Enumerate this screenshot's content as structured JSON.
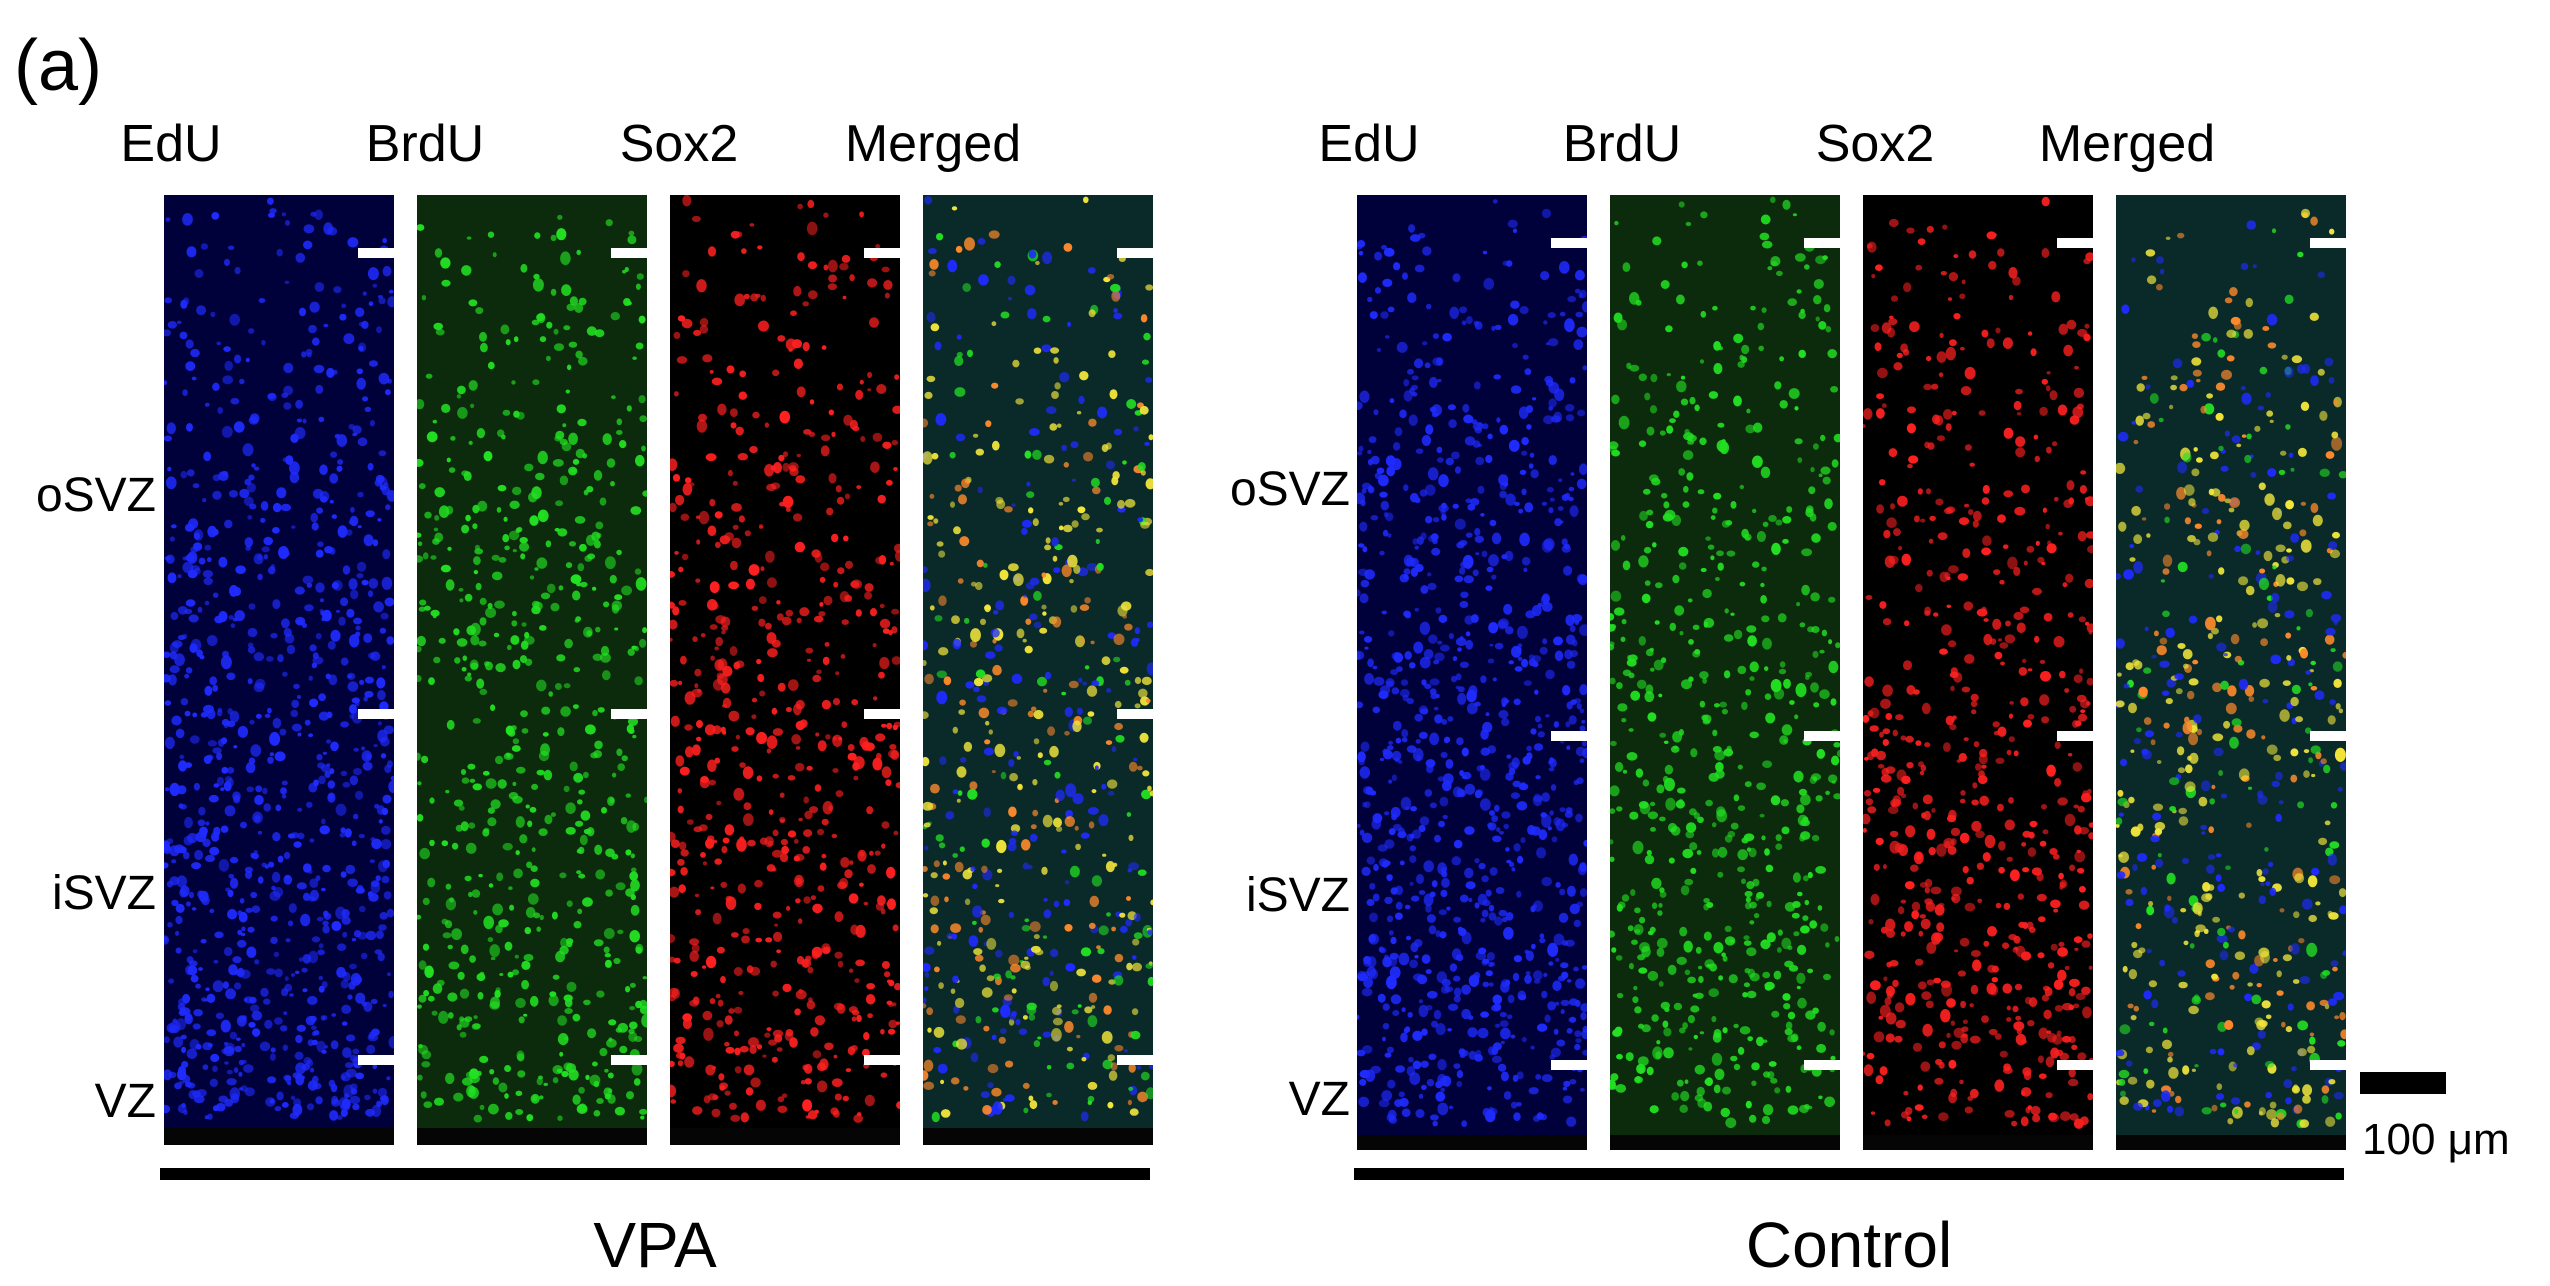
{
  "panel_label": "(a)",
  "groups": [
    {
      "label": "VPA",
      "columns": [
        {
          "label": "EdU",
          "channel": "edu"
        },
        {
          "label": "BrdU",
          "channel": "brdu"
        },
        {
          "label": "Sox2",
          "channel": "sox2"
        },
        {
          "label": "Merged",
          "channel": "merged"
        }
      ],
      "zones": [
        "oSVZ",
        "iSVZ",
        "VZ"
      ]
    },
    {
      "label": "Control",
      "columns": [
        {
          "label": "EdU",
          "channel": "edu"
        },
        {
          "label": "BrdU",
          "channel": "brdu"
        },
        {
          "label": "Sox2",
          "channel": "sox2"
        },
        {
          "label": "Merged",
          "channel": "merged"
        }
      ],
      "zones": [
        "oSVZ",
        "iSVZ",
        "VZ"
      ]
    }
  ],
  "scale_bar": {
    "label": "100 μm"
  },
  "colors": {
    "edu": "#1f2bff",
    "brdu": "#22e022",
    "sox2": "#ff2020",
    "merged_yellow": "#f2e63a",
    "merged_orange": "#ff8a2a",
    "background": "#000000",
    "marker": "#ffffff"
  }
}
